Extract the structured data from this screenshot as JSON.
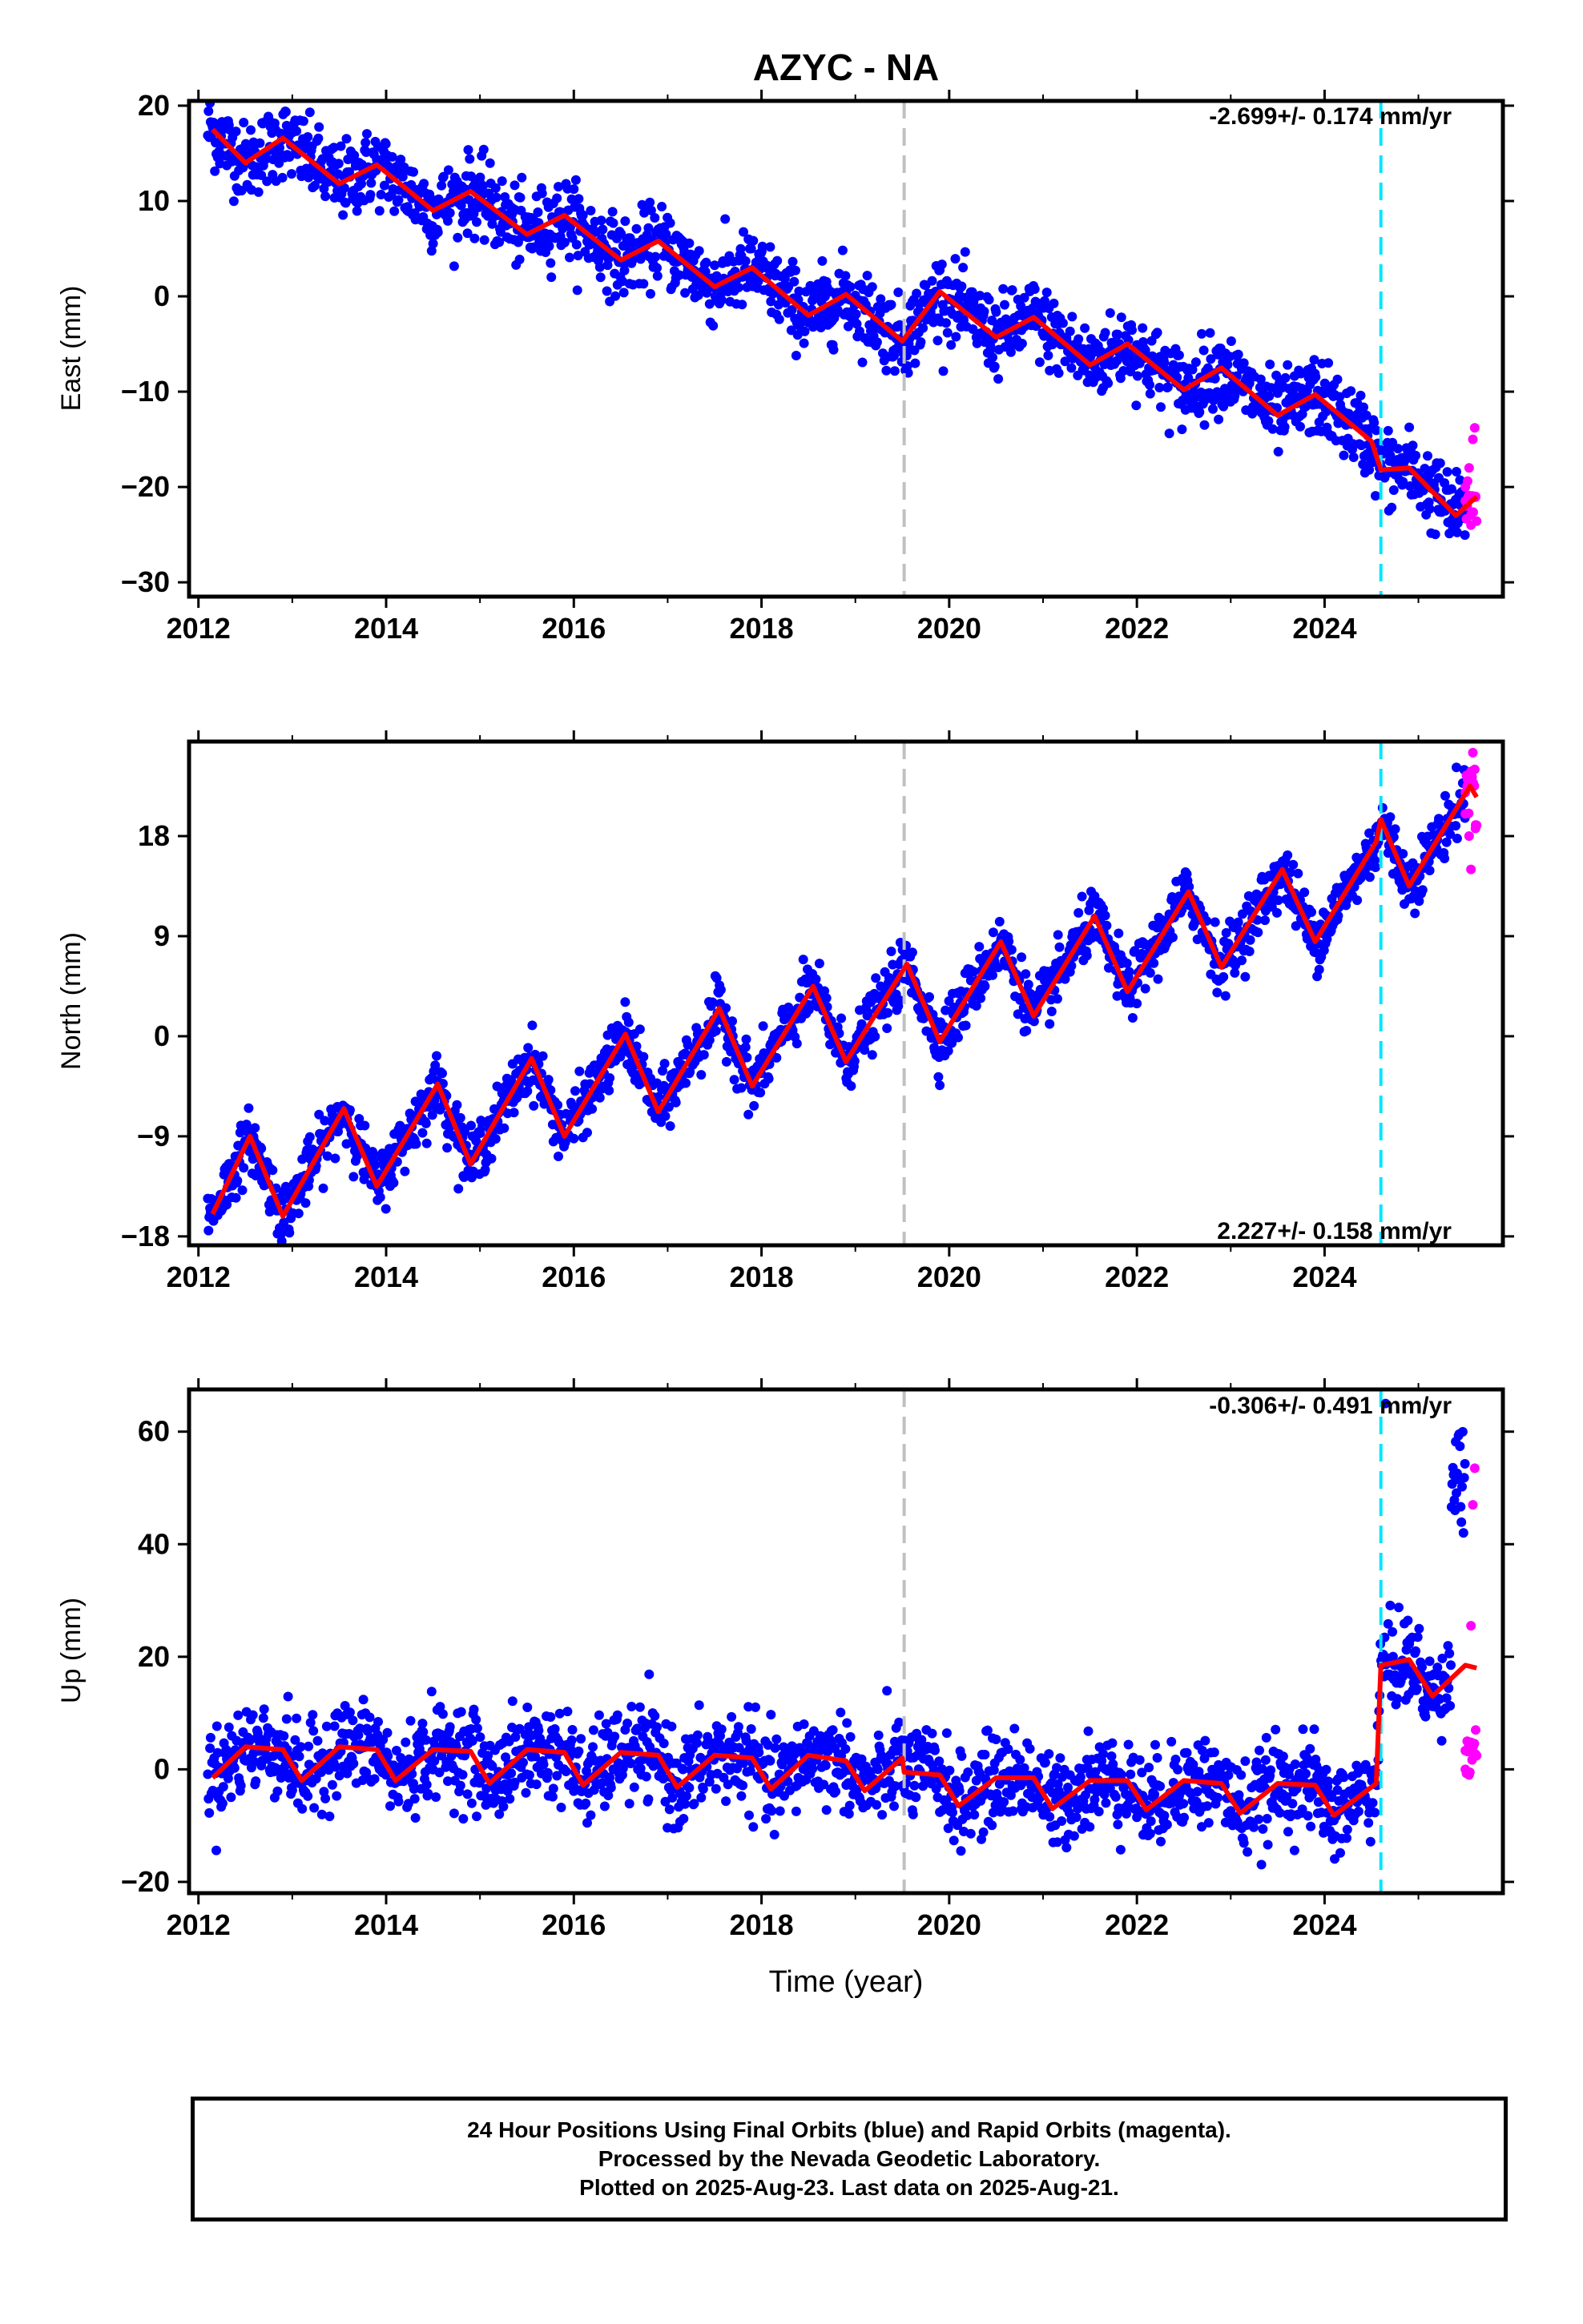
{
  "title": "AZYC - NA",
  "xlabel": "Time (year)",
  "colors": {
    "final_orbits": "#0000ff",
    "rapid_orbits": "#ff00ff",
    "model": "#ff0000",
    "equipment_change": "#c0c0c0",
    "event": "#00e5ff",
    "frame": "#000000"
  },
  "caption": {
    "line1": "24 Hour Positions Using Final Orbits (blue) and Rapid Orbits (magenta).",
    "line2": "Processed by the Nevada Geodetic Laboratory.",
    "line3": "Plotted on 2025-Aug-23. Last data on 2025-Aug-21."
  },
  "chart_data": [
    {
      "type": "scatter",
      "ylabel": "East (mm)",
      "rate_label": "-2.699+/- 0.174 mm/yr",
      "rate_position": "top-right",
      "xlim": [
        2011.9,
        2025.9
      ],
      "ylim": [
        -31.5,
        20.5
      ],
      "xticks": [
        2012,
        2014,
        2016,
        2018,
        2020,
        2022,
        2024
      ],
      "yticks": [
        -30,
        -20,
        -10,
        0,
        10,
        20
      ],
      "vlines": [
        {
          "x": 2019.52,
          "kind": "equipment_change"
        },
        {
          "x": 2024.6,
          "kind": "event"
        }
      ],
      "model": {
        "trend_rate_mm_per_yr": -2.699,
        "values_at_2012_15": 17.5,
        "seasonal_amplitude": 1.6,
        "offset_at_2019_52": 2.8,
        "offset_at_2024_6": -3.0,
        "curve": [
          [
            2012.15,
            17.5
          ],
          [
            2012.5,
            14.0
          ],
          [
            2012.9,
            16.6
          ],
          [
            2013.5,
            11.8
          ],
          [
            2013.9,
            13.8
          ],
          [
            2014.5,
            9.0
          ],
          [
            2014.9,
            11.0
          ],
          [
            2015.5,
            6.5
          ],
          [
            2015.9,
            8.5
          ],
          [
            2016.5,
            3.8
          ],
          [
            2016.9,
            5.8
          ],
          [
            2017.5,
            1.0
          ],
          [
            2017.9,
            3.0
          ],
          [
            2018.5,
            -2.0
          ],
          [
            2018.9,
            0.2
          ],
          [
            2019.5,
            -4.7
          ],
          [
            2019.9,
            0.5
          ],
          [
            2020.5,
            -4.3
          ],
          [
            2020.9,
            -2.2
          ],
          [
            2021.5,
            -7.2
          ],
          [
            2021.9,
            -5.0
          ],
          [
            2022.5,
            -9.8
          ],
          [
            2022.9,
            -7.5
          ],
          [
            2023.5,
            -12.5
          ],
          [
            2023.9,
            -10.3
          ],
          [
            2024.5,
            -15.2
          ],
          [
            2024.6,
            -18.2
          ],
          [
            2024.9,
            -18.0
          ],
          [
            2025.4,
            -23.0
          ],
          [
            2025.62,
            -21.0
          ]
        ]
      },
      "series": [
        {
          "name": "final_orbits",
          "scatter": 2.0,
          "x_range": [
            2012.1,
            2025.5
          ]
        },
        {
          "name": "rapid_orbits",
          "x_range": [
            2025.45,
            2025.62
          ],
          "values": [
            [
              2025.5,
              -20.0
            ],
            [
              2025.52,
              -22.0
            ],
            [
              2025.54,
              -18.0
            ],
            [
              2025.56,
              -24.0
            ],
            [
              2025.58,
              -15.0
            ],
            [
              2025.6,
              -13.8
            ],
            [
              2025.61,
              -21.0
            ]
          ]
        }
      ]
    },
    {
      "type": "scatter",
      "ylabel": "North (mm)",
      "rate_label": "2.227+/- 0.158 mm/yr",
      "rate_position": "bottom-right",
      "xlim": [
        2011.9,
        2025.9
      ],
      "ylim": [
        -18.8,
        26.5
      ],
      "xticks": [
        2012,
        2014,
        2016,
        2018,
        2020,
        2022,
        2024
      ],
      "yticks": [
        -18,
        -9,
        0,
        9,
        18
      ],
      "vlines": [
        {
          "x": 2019.52,
          "kind": "equipment_change"
        },
        {
          "x": 2024.6,
          "kind": "event"
        }
      ],
      "model": {
        "trend_rate_mm_per_yr": 2.227,
        "values_at_2012_15": -16.0,
        "seasonal_amplitude": 4.0,
        "curve": [
          [
            2012.15,
            -16.0
          ],
          [
            2012.55,
            -9.0
          ],
          [
            2012.9,
            -16.2
          ],
          [
            2013.55,
            -6.5
          ],
          [
            2013.9,
            -13.5
          ],
          [
            2014.55,
            -4.3
          ],
          [
            2014.9,
            -11.5
          ],
          [
            2015.55,
            -2.0
          ],
          [
            2015.9,
            -9.0
          ],
          [
            2016.55,
            0.2
          ],
          [
            2016.9,
            -6.8
          ],
          [
            2017.55,
            2.5
          ],
          [
            2017.9,
            -4.5
          ],
          [
            2018.55,
            4.5
          ],
          [
            2018.9,
            -2.3
          ],
          [
            2019.55,
            6.5
          ],
          [
            2019.9,
            -0.5
          ],
          [
            2020.55,
            8.5
          ],
          [
            2020.9,
            1.8
          ],
          [
            2021.55,
            10.8
          ],
          [
            2021.9,
            4.0
          ],
          [
            2022.55,
            13.0
          ],
          [
            2022.9,
            6.2
          ],
          [
            2023.55,
            15.0
          ],
          [
            2023.9,
            8.5
          ],
          [
            2024.55,
            17.5
          ],
          [
            2024.6,
            19.5
          ],
          [
            2024.9,
            13.5
          ],
          [
            2025.55,
            22.5
          ],
          [
            2025.62,
            21.5
          ]
        ]
      },
      "series": [
        {
          "name": "final_orbits",
          "scatter": 1.3,
          "x_range": [
            2012.1,
            2025.5
          ]
        },
        {
          "name": "rapid_orbits",
          "x_range": [
            2025.45,
            2025.62
          ],
          "values": [
            [
              2025.5,
              20.0
            ],
            [
              2025.52,
              22.5
            ],
            [
              2025.54,
              18.0
            ],
            [
              2025.56,
              15.0
            ],
            [
              2025.58,
              25.5
            ],
            [
              2025.6,
              24.0
            ],
            [
              2025.61,
              19.0
            ]
          ]
        }
      ]
    },
    {
      "type": "scatter",
      "ylabel": "Up (mm)",
      "rate_label": "-0.306+/- 0.491 mm/yr",
      "rate_position": "top-right",
      "xlim": [
        2011.9,
        2025.9
      ],
      "ylim": [
        -22.0,
        67.5
      ],
      "xticks": [
        2012,
        2014,
        2016,
        2018,
        2020,
        2022,
        2024
      ],
      "yticks": [
        -20,
        0,
        20,
        40,
        60
      ],
      "vlines": [
        {
          "x": 2019.52,
          "kind": "equipment_change"
        },
        {
          "x": 2024.6,
          "kind": "event"
        }
      ],
      "model": {
        "trend_rate_mm_per_yr": -0.306,
        "seasonal_amplitude": 3.0,
        "curve": [
          [
            2012.15,
            -1.5
          ],
          [
            2012.5,
            4.0
          ],
          [
            2012.9,
            3.5
          ],
          [
            2013.1,
            -2.0
          ],
          [
            2013.5,
            4.0
          ],
          [
            2013.9,
            3.5
          ],
          [
            2014.1,
            -2.0
          ],
          [
            2014.5,
            3.5
          ],
          [
            2014.9,
            3.2
          ],
          [
            2015.1,
            -2.5
          ],
          [
            2015.5,
            3.5
          ],
          [
            2015.9,
            3.0
          ],
          [
            2016.1,
            -2.8
          ],
          [
            2016.5,
            3.0
          ],
          [
            2016.9,
            2.5
          ],
          [
            2017.1,
            -3.2
          ],
          [
            2017.5,
            2.5
          ],
          [
            2017.9,
            2.0
          ],
          [
            2018.1,
            -3.5
          ],
          [
            2018.5,
            2.5
          ],
          [
            2018.9,
            1.5
          ],
          [
            2019.1,
            -3.8
          ],
          [
            2019.5,
            2.0
          ],
          [
            2019.52,
            -0.5
          ],
          [
            2019.9,
            -1.0
          ],
          [
            2020.1,
            -6.5
          ],
          [
            2020.5,
            -1.5
          ],
          [
            2020.9,
            -1.5
          ],
          [
            2021.1,
            -7.0
          ],
          [
            2021.5,
            -2.0
          ],
          [
            2021.9,
            -2.0
          ],
          [
            2022.1,
            -7.2
          ],
          [
            2022.5,
            -2.0
          ],
          [
            2022.9,
            -2.5
          ],
          [
            2023.1,
            -7.8
          ],
          [
            2023.5,
            -2.5
          ],
          [
            2023.9,
            -2.8
          ],
          [
            2024.1,
            -8.2
          ],
          [
            2024.55,
            -2.5
          ],
          [
            2024.6,
            18.5
          ],
          [
            2024.9,
            19.5
          ],
          [
            2025.15,
            13.0
          ],
          [
            2025.5,
            18.5
          ],
          [
            2025.62,
            18.0
          ]
        ]
      },
      "series": [
        {
          "name": "final_orbits",
          "scatter": 4.0,
          "x_range": [
            2012.1,
            2025.5
          ],
          "cluster": {
            "x_range": [
              2025.35,
              2025.55
            ],
            "y_range": [
              42.0,
              60.0
            ],
            "max_point": [
              2024.65,
              65.0
            ]
          }
        },
        {
          "name": "rapid_orbits",
          "x_range": [
            2025.45,
            2025.62
          ],
          "values": [
            [
              2025.5,
              0.0
            ],
            [
              2025.52,
              5.0
            ],
            [
              2025.54,
              -1.0
            ],
            [
              2025.56,
              25.5
            ],
            [
              2025.58,
              47.0
            ],
            [
              2025.6,
              53.5
            ],
            [
              2025.61,
              7.0
            ]
          ]
        }
      ]
    }
  ]
}
